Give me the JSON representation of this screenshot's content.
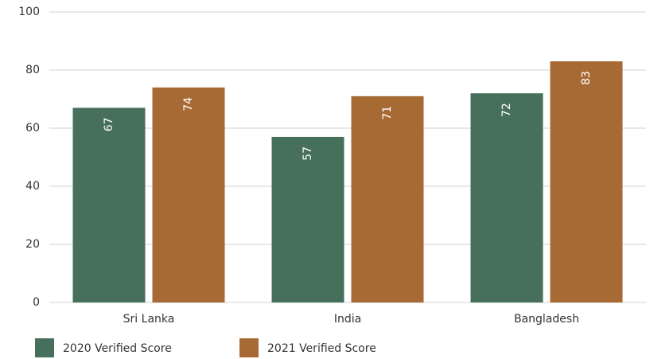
{
  "chart_data": {
    "type": "bar",
    "categories": [
      "Sri Lanka",
      "India",
      "Bangladesh"
    ],
    "series": [
      {
        "name": "2020 Verified Score",
        "color": "#46705c",
        "values": [
          67,
          57,
          72
        ]
      },
      {
        "name": "2021 Verified Score",
        "color": "#a86a35",
        "values": [
          74,
          71,
          83
        ]
      }
    ],
    "ylim": [
      0,
      100
    ],
    "yticks": [
      0,
      20,
      40,
      60,
      80,
      100
    ],
    "grid": true,
    "legend": "bottom"
  }
}
